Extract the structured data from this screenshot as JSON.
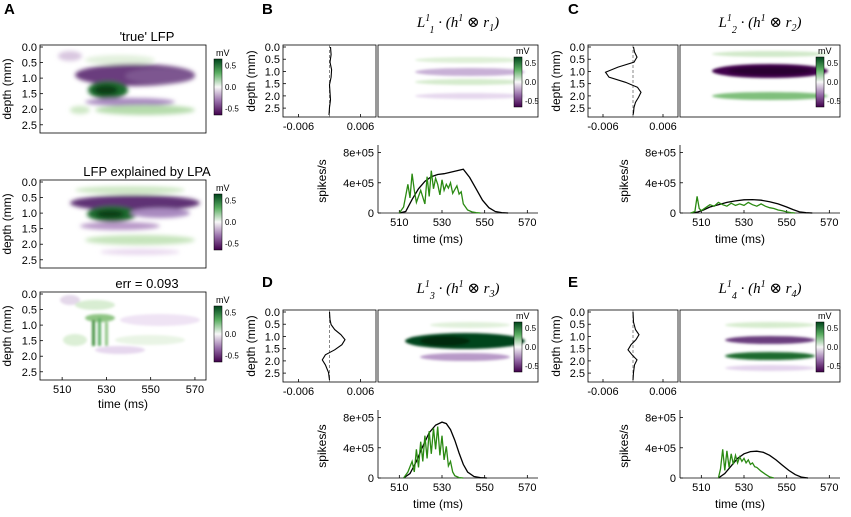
{
  "chart_data": [
    {
      "id": "A",
      "letter": "A",
      "type": "heatmap",
      "xlabel": "time (ms)",
      "ylabel": "depth (mm)",
      "xlim": [
        500,
        575
      ],
      "ylim": [
        2.7,
        0.0
      ],
      "xticks": [
        "510",
        "530",
        "550",
        "570"
      ],
      "yticks": [
        "0.0",
        "0.5",
        "1.0",
        "1.5",
        "2.0",
        "2.5"
      ],
      "colorbar": {
        "unit": "mV",
        "ticks": [
          "0.5",
          "0.0",
          "-0.5"
        ],
        "range": [
          -0.5,
          0.5
        ]
      },
      "maps": [
        {
          "title": "'true' LFP"
        },
        {
          "title": "LFP explained by LPA"
        },
        {
          "title": "err = 0.093"
        }
      ]
    },
    {
      "id": "B",
      "letter": "B",
      "type": "line",
      "title_base": "L",
      "title_sup": "1",
      "title_sub": "1",
      "title_r": "r",
      "title_r_sub": "1",
      "title_rest": " · (h",
      "title_h_sup": "1",
      "title_otimes": " ⊗ ",
      "title_close": ")",
      "profile": {
        "xticks": [
          "-0.006",
          "0.006"
        ],
        "xlim": [
          -0.009,
          0.009
        ],
        "ylim": [
          2.7,
          0.0
        ],
        "ylabel": "depth (mm)",
        "yticks": [
          "0.0",
          "0.5",
          "1.0",
          "1.5",
          "2.0",
          "2.5"
        ],
        "depth": [
          0.0,
          0.3,
          0.6,
          0.9,
          1.2,
          1.5,
          1.8,
          2.1,
          2.4,
          2.7
        ],
        "values": [
          0.0002,
          0.0003,
          0.0001,
          0.0004,
          0.0003,
          0.0,
          0.0001,
          0.0002,
          0.0,
          -0.0001
        ]
      },
      "spatial_colorbar": {
        "unit": "mV",
        "ticks": [
          "0.5",
          "0.0",
          "-0.5"
        ]
      },
      "rate": {
        "ylabel": "spikes/s",
        "xlabel": "time (ms)",
        "xlim": [
          500,
          575
        ],
        "ylim": [
          0,
          900000
        ],
        "yticks": [
          "0",
          "4e+05",
          "8e+05"
        ],
        "xticks": [
          "510",
          "530",
          "550",
          "570"
        ],
        "series": [
          {
            "name": "black",
            "color": "#000000",
            "x": [
              510,
              513,
              516,
              519,
              522,
              525,
              528,
              531,
              534,
              537,
              540,
              543,
              546,
              549,
              552,
              555,
              558,
              561
            ],
            "y": [
              0,
              20000,
              180000,
              320000,
              420000,
              480000,
              510000,
              520000,
              540000,
              560000,
              580000,
              470000,
              320000,
              170000,
              70000,
              20000,
              5000,
              0
            ]
          },
          {
            "name": "green",
            "color": "#2a8a12",
            "x": [
              510,
              512,
              514,
              515,
              516,
              517,
              518,
              520,
              522,
              523,
              524,
              525,
              526,
              527,
              528,
              529,
              530,
              531,
              532,
              533,
              534,
              535,
              536,
              537,
              538,
              539,
              540,
              542,
              544,
              546,
              548
            ],
            "y": [
              0,
              80000,
              380000,
              200000,
              520000,
              300000,
              140000,
              300000,
              120000,
              480000,
              220000,
              560000,
              320000,
              460000,
              380000,
              240000,
              440000,
              300000,
              380000,
              330000,
              400000,
              260000,
              310000,
              360000,
              250000,
              280000,
              120000,
              40000,
              15000,
              5000,
              0
            ]
          }
        ]
      }
    },
    {
      "id": "C",
      "letter": "C",
      "type": "line",
      "title_base": "L",
      "title_sup": "1",
      "title_sub": "2",
      "title_r": "r",
      "title_r_sub": "2",
      "title_rest": " · (h",
      "title_h_sup": "1",
      "title_otimes": " ⊗ ",
      "title_close": ")",
      "profile": {
        "xticks": [
          "-0.006",
          "0.006"
        ],
        "xlim": [
          -0.009,
          0.009
        ],
        "ylim": [
          2.7,
          0.0
        ],
        "ylabel": "depth (mm)",
        "yticks": [
          "0.0",
          "0.5",
          "1.0",
          "1.5",
          "2.0",
          "2.5"
        ],
        "depth": [
          0.0,
          0.2,
          0.4,
          0.6,
          0.8,
          1.0,
          1.2,
          1.4,
          1.6,
          1.8,
          2.0,
          2.2,
          2.4,
          2.6,
          2.7
        ],
        "values": [
          0.0001,
          0.0003,
          0.0008,
          0.0002,
          -0.003,
          -0.0055,
          -0.0048,
          -0.0015,
          0.0009,
          0.0016,
          0.0011,
          0.0005,
          0.0002,
          0.0001,
          0.0
        ]
      },
      "spatial_colorbar": {
        "unit": "mV",
        "ticks": [
          "0.5",
          "0.0",
          "-0.5"
        ]
      },
      "rate": {
        "ylabel": "spikes/s",
        "xlabel": "time (ms)",
        "xlim": [
          500,
          575
        ],
        "ylim": [
          0,
          900000
        ],
        "yticks": [
          "0",
          "4e+05",
          "8e+05"
        ],
        "xticks": [
          "510",
          "530",
          "550",
          "570"
        ],
        "series": [
          {
            "name": "black",
            "color": "#000000",
            "x": [
              505,
              508,
              511,
              514,
              518,
              522,
              526,
              530,
              534,
              538,
              542,
              546,
              550,
              553,
              556,
              559,
              562
            ],
            "y": [
              0,
              10000,
              40000,
              80000,
              110000,
              140000,
              160000,
              175000,
              178000,
              170000,
              150000,
              120000,
              80000,
              45000,
              15000,
              4000,
              0
            ]
          },
          {
            "name": "green",
            "color": "#2a8a12",
            "x": [
              505,
              507,
              508,
              509,
              510,
              512,
              514,
              516,
              518,
              520,
              522,
              524,
              526,
              528,
              530,
              532,
              534,
              536,
              538,
              540,
              542,
              544,
              546,
              548,
              550,
              552,
              554
            ],
            "y": [
              0,
              20000,
              220000,
              60000,
              30000,
              70000,
              110000,
              90000,
              140000,
              110000,
              90000,
              130000,
              100000,
              120000,
              100000,
              140000,
              110000,
              90000,
              120000,
              90000,
              70000,
              60000,
              40000,
              30000,
              15000,
              5000,
              0
            ]
          }
        ]
      }
    },
    {
      "id": "D",
      "letter": "D",
      "type": "line",
      "title_base": "L",
      "title_sup": "1",
      "title_sub": "3",
      "title_r": "r",
      "title_r_sub": "3",
      "title_rest": " · (h",
      "title_h_sup": "1",
      "title_otimes": " ⊗ ",
      "title_close": ")",
      "profile": {
        "xticks": [
          "-0.006",
          "0.006"
        ],
        "xlim": [
          -0.009,
          0.009
        ],
        "ylim": [
          2.7,
          0.0
        ],
        "ylabel": "depth (mm)",
        "yticks": [
          "0.0",
          "0.5",
          "1.0",
          "1.5",
          "2.0",
          "2.5"
        ],
        "depth": [
          0.0,
          0.3,
          0.5,
          0.7,
          0.9,
          1.1,
          1.3,
          1.5,
          1.7,
          1.9,
          2.1,
          2.4,
          2.7
        ],
        "values": [
          0.0,
          0.0001,
          0.0003,
          0.001,
          0.0022,
          0.003,
          0.0024,
          0.001,
          -0.0008,
          -0.0014,
          -0.0008,
          -0.0002,
          0.0
        ]
      },
      "spatial_colorbar": {
        "unit": "mV",
        "ticks": [
          "0.5",
          "0.0",
          "-0.5"
        ]
      },
      "rate": {
        "ylabel": "spikes/s",
        "xlabel": "time (ms)",
        "xlim": [
          500,
          575
        ],
        "ylim": [
          0,
          900000
        ],
        "yticks": [
          "0",
          "4e+05",
          "8e+05"
        ],
        "xticks": [
          "510",
          "530",
          "550",
          "570"
        ],
        "series": [
          {
            "name": "black",
            "color": "#000000",
            "x": [
              512,
              515,
              518,
              521,
              524,
              527,
              530,
              532,
              534,
              536,
              538,
              540,
              542,
              545,
              548,
              551
            ],
            "y": [
              0,
              60000,
              220000,
              420000,
              600000,
              700000,
              740000,
              720000,
              640000,
              500000,
              330000,
              180000,
              80000,
              20000,
              5000,
              0
            ]
          },
          {
            "name": "green",
            "color": "#2a8a12",
            "x": [
              512,
              514,
              516,
              517,
              518,
              519,
              520,
              521,
              522,
              523,
              524,
              525,
              526,
              527,
              528,
              529,
              530,
              531,
              532,
              533,
              534,
              535,
              536,
              538,
              540
            ],
            "y": [
              0,
              80000,
              220000,
              80000,
              380000,
              140000,
              480000,
              220000,
              560000,
              260000,
              620000,
              320000,
              660000,
              380000,
              680000,
              300000,
              560000,
              240000,
              420000,
              160000,
              220000,
              80000,
              30000,
              5000,
              0
            ]
          }
        ]
      }
    },
    {
      "id": "E",
      "letter": "E",
      "type": "line",
      "title_base": "L",
      "title_sup": "1",
      "title_sub": "4",
      "title_r": "r",
      "title_r_sub": "4",
      "title_rest": " · (h",
      "title_h_sup": "1",
      "title_otimes": " ⊗ ",
      "title_close": ")",
      "profile": {
        "xticks": [
          "-0.006",
          "0.006"
        ],
        "xlim": [
          -0.009,
          0.009
        ],
        "ylim": [
          2.7,
          0.0
        ],
        "ylabel": "depth (mm)",
        "yticks": [
          "0.0",
          "0.5",
          "1.0",
          "1.5",
          "2.0",
          "2.5"
        ],
        "depth": [
          0.0,
          0.4,
          0.7,
          0.9,
          1.1,
          1.3,
          1.5,
          1.7,
          1.9,
          2.1,
          2.4,
          2.7
        ],
        "values": [
          0.0,
          0.0001,
          0.0005,
          0.0012,
          0.0006,
          -0.0004,
          -0.001,
          -0.0002,
          0.0008,
          0.0003,
          0.0001,
          0.0
        ]
      },
      "spatial_colorbar": {
        "unit": "mV",
        "ticks": [
          "0.5",
          "0.0",
          "-0.5"
        ]
      },
      "rate": {
        "ylabel": "spikes/s",
        "xlabel": "time (ms)",
        "xlim": [
          500,
          575
        ],
        "ylim": [
          0,
          900000
        ],
        "yticks": [
          "0",
          "4e+05",
          "8e+05"
        ],
        "xticks": [
          "510",
          "530",
          "550",
          "570"
        ],
        "series": [
          {
            "name": "black",
            "color": "#000000",
            "x": [
              518,
              521,
              524,
              527,
              530,
              533,
              536,
              539,
              542,
              545,
              548,
              551,
              554,
              557,
              560
            ],
            "y": [
              0,
              60000,
              160000,
              260000,
              320000,
              350000,
              355000,
              340000,
              300000,
              240000,
              170000,
              100000,
              45000,
              10000,
              0
            ]
          },
          {
            "name": "green",
            "color": "#2a8a12",
            "x": [
              518,
              519,
              520,
              521,
              522,
              523,
              524,
              525,
              526,
              527,
              528,
              529,
              530,
              531,
              532,
              533,
              534,
              535,
              536,
              538,
              540,
              542,
              544
            ],
            "y": [
              0,
              120000,
              380000,
              100000,
              360000,
              140000,
              320000,
              180000,
              300000,
              200000,
              280000,
              220000,
              260000,
              200000,
              240000,
              180000,
              200000,
              150000,
              140000,
              90000,
              50000,
              15000,
              0
            ]
          }
        ]
      }
    }
  ]
}
